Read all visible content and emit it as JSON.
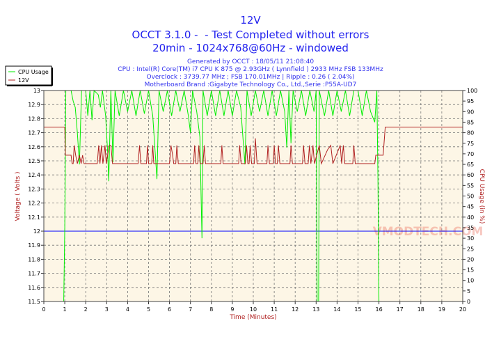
{
  "header": {
    "title": "12V",
    "line2": "OCCT 3.1.0 -  - Test Completed without errors",
    "line3": "20min - 1024x768@60Hz - windowed",
    "info1": "Generated by OCCT : 18/05/11 21:08:40",
    "info2": "CPU : Intel(R) Core(TM) i7 CPU K 875 @ 2.93GHz ( Lynnfield ) 2933 MHz FSB 133MHz",
    "info3": "Overclock : 3739.77 MHz ; FSB 170.01MHz | Ripple : 0.26 ( 2.04%)",
    "info4": "Motherboard Brand :Gigabyte Technology Co., Ltd.,Serie :P55A-UD7"
  },
  "watermark": "VMODTECH.COM",
  "colors": {
    "title": "#2222ee",
    "cpu": "#00ee00",
    "volt": "#b02020",
    "nominal": "#0000ff",
    "plot_bg": "#fdf6e6",
    "axis_label": "#b02020"
  },
  "chart_data": {
    "type": "line",
    "xlabel": "Time (Minutes)",
    "ylabel": "Voltage ( Volts )",
    "y2label": "CPU Usage (in %)",
    "xlim": [
      0,
      20
    ],
    "ylim": [
      11.5,
      13
    ],
    "y2lim": [
      0,
      100
    ],
    "x_ticks": [
      "0",
      "1",
      "2",
      "3",
      "4",
      "5",
      "6",
      "7",
      "8",
      "9",
      "10",
      "11",
      "12",
      "13",
      "14",
      "15",
      "16",
      "17",
      "18",
      "19",
      "20"
    ],
    "y_ticks": [
      "11.5",
      "11.6",
      "11.7",
      "11.8",
      "11.9",
      "12",
      "12.1",
      "12.2",
      "12.3",
      "12.4",
      "12.5",
      "12.6",
      "12.7",
      "12.8",
      "12.9",
      "13"
    ],
    "y2_ticks": [
      "0",
      "5",
      "10",
      "15",
      "20",
      "25",
      "30",
      "35",
      "40",
      "45",
      "50",
      "55",
      "60",
      "65",
      "70",
      "75",
      "80",
      "85",
      "90",
      "95",
      "100"
    ],
    "grid": true,
    "legend_position": "top-left",
    "nominal_voltage": 12,
    "series": [
      {
        "name": "CPU Usage",
        "axis": "right",
        "points": [
          [
            0,
            0
          ],
          [
            0.95,
            0
          ],
          [
            1.0,
            35
          ],
          [
            1.05,
            100
          ],
          [
            1.3,
            100
          ],
          [
            1.4,
            95
          ],
          [
            1.5,
            92
          ],
          [
            1.6,
            80
          ],
          [
            1.7,
            65
          ],
          [
            1.8,
            100
          ],
          [
            2.0,
            100
          ],
          [
            2.1,
            88
          ],
          [
            2.2,
            100
          ],
          [
            2.3,
            86
          ],
          [
            2.4,
            100
          ],
          [
            2.6,
            98
          ],
          [
            2.7,
            92
          ],
          [
            2.8,
            100
          ],
          [
            2.95,
            88
          ],
          [
            3.05,
            70
          ],
          [
            3.1,
            57
          ],
          [
            3.2,
            100
          ],
          [
            3.3,
            66
          ],
          [
            3.4,
            100
          ],
          [
            3.6,
            88
          ],
          [
            3.8,
            100
          ],
          [
            4.0,
            90
          ],
          [
            4.2,
            100
          ],
          [
            4.4,
            88
          ],
          [
            4.6,
            100
          ],
          [
            4.8,
            89
          ],
          [
            5.0,
            100
          ],
          [
            5.2,
            88
          ],
          [
            5.4,
            58
          ],
          [
            5.5,
            100
          ],
          [
            5.7,
            90
          ],
          [
            5.9,
            100
          ],
          [
            6.1,
            88
          ],
          [
            6.3,
            100
          ],
          [
            6.5,
            90
          ],
          [
            6.7,
            100
          ],
          [
            6.9,
            88
          ],
          [
            7.0,
            80
          ],
          [
            7.1,
            100
          ],
          [
            7.3,
            90
          ],
          [
            7.45,
            78
          ],
          [
            7.55,
            30
          ],
          [
            7.6,
            100
          ],
          [
            7.8,
            88
          ],
          [
            8.0,
            100
          ],
          [
            8.2,
            88
          ],
          [
            8.4,
            100
          ],
          [
            8.6,
            88
          ],
          [
            8.8,
            100
          ],
          [
            9.0,
            88
          ],
          [
            9.2,
            100
          ],
          [
            9.4,
            92
          ],
          [
            9.6,
            65
          ],
          [
            9.7,
            100
          ],
          [
            9.9,
            88
          ],
          [
            10.1,
            100
          ],
          [
            10.3,
            90
          ],
          [
            10.5,
            100
          ],
          [
            10.7,
            88
          ],
          [
            10.9,
            100
          ],
          [
            11.1,
            88
          ],
          [
            11.3,
            100
          ],
          [
            11.5,
            90
          ],
          [
            11.6,
            73
          ],
          [
            11.7,
            100
          ],
          [
            11.8,
            75
          ],
          [
            11.9,
            100
          ],
          [
            12.1,
            90
          ],
          [
            12.3,
            100
          ],
          [
            12.5,
            88
          ],
          [
            12.7,
            100
          ],
          [
            12.9,
            90
          ],
          [
            13.0,
            100
          ],
          [
            13.05,
            0
          ],
          [
            13.12,
            0
          ],
          [
            13.15,
            100
          ],
          [
            13.4,
            88
          ],
          [
            13.6,
            100
          ],
          [
            13.8,
            88
          ],
          [
            14.0,
            100
          ],
          [
            14.2,
            90
          ],
          [
            14.4,
            100
          ],
          [
            14.6,
            88
          ],
          [
            14.8,
            100
          ],
          [
            15.0,
            100
          ],
          [
            15.2,
            88
          ],
          [
            15.4,
            100
          ],
          [
            15.6,
            90
          ],
          [
            15.8,
            85
          ],
          [
            15.9,
            100
          ],
          [
            15.95,
            60
          ],
          [
            16.0,
            0
          ],
          [
            20,
            0
          ]
        ]
      },
      {
        "name": "12V",
        "axis": "left",
        "points": [
          [
            0,
            12.74
          ],
          [
            1.0,
            12.74
          ],
          [
            1.03,
            12.54
          ],
          [
            1.3,
            12.54
          ],
          [
            1.35,
            12.48
          ],
          [
            1.4,
            12.48
          ],
          [
            1.45,
            12.61
          ],
          [
            1.52,
            12.54
          ],
          [
            1.6,
            12.48
          ],
          [
            1.7,
            12.54
          ],
          [
            1.78,
            12.48
          ],
          [
            1.85,
            12.54
          ],
          [
            1.92,
            12.48
          ],
          [
            2.55,
            12.48
          ],
          [
            2.62,
            12.61
          ],
          [
            2.68,
            12.48
          ],
          [
            2.75,
            12.61
          ],
          [
            2.82,
            12.48
          ],
          [
            2.92,
            12.61
          ],
          [
            2.98,
            12.48
          ],
          [
            3.12,
            12.61
          ],
          [
            3.2,
            12.61
          ],
          [
            3.28,
            12.48
          ],
          [
            4.5,
            12.48
          ],
          [
            4.57,
            12.61
          ],
          [
            4.63,
            12.48
          ],
          [
            4.9,
            12.48
          ],
          [
            4.95,
            12.61
          ],
          [
            5.0,
            12.48
          ],
          [
            5.15,
            12.48
          ],
          [
            5.2,
            12.61
          ],
          [
            5.25,
            12.48
          ],
          [
            6.0,
            12.48
          ],
          [
            6.07,
            12.61
          ],
          [
            6.15,
            12.54
          ],
          [
            6.2,
            12.48
          ],
          [
            6.3,
            12.48
          ],
          [
            6.35,
            12.61
          ],
          [
            6.42,
            12.48
          ],
          [
            7.15,
            12.48
          ],
          [
            7.2,
            12.61
          ],
          [
            7.26,
            12.48
          ],
          [
            7.35,
            12.48
          ],
          [
            7.4,
            12.61
          ],
          [
            7.46,
            12.48
          ],
          [
            7.6,
            12.48
          ],
          [
            7.66,
            12.61
          ],
          [
            7.72,
            12.48
          ],
          [
            8.45,
            12.48
          ],
          [
            8.5,
            12.61
          ],
          [
            8.56,
            12.48
          ],
          [
            9.3,
            12.48
          ],
          [
            9.35,
            12.61
          ],
          [
            9.42,
            12.48
          ],
          [
            9.62,
            12.48
          ],
          [
            9.68,
            12.61
          ],
          [
            9.74,
            12.48
          ],
          [
            9.8,
            12.48
          ],
          [
            9.85,
            12.61
          ],
          [
            9.92,
            12.48
          ],
          [
            10.05,
            12.48
          ],
          [
            10.1,
            12.66
          ],
          [
            10.18,
            12.48
          ],
          [
            10.65,
            12.48
          ],
          [
            10.7,
            12.61
          ],
          [
            10.77,
            12.48
          ],
          [
            10.95,
            12.48
          ],
          [
            11.0,
            12.61
          ],
          [
            11.06,
            12.48
          ],
          [
            11.15,
            12.48
          ],
          [
            11.2,
            12.61
          ],
          [
            11.27,
            12.48
          ],
          [
            11.75,
            12.48
          ],
          [
            11.8,
            12.61
          ],
          [
            11.87,
            12.48
          ],
          [
            12.35,
            12.48
          ],
          [
            12.4,
            12.61
          ],
          [
            12.47,
            12.48
          ],
          [
            12.62,
            12.48
          ],
          [
            12.68,
            12.61
          ],
          [
            12.75,
            12.48
          ],
          [
            12.85,
            12.61
          ],
          [
            12.92,
            12.48
          ],
          [
            13.15,
            12.61
          ],
          [
            13.25,
            12.48
          ],
          [
            13.55,
            12.58
          ],
          [
            13.7,
            12.61
          ],
          [
            13.8,
            12.48
          ],
          [
            14.15,
            12.61
          ],
          [
            14.22,
            12.48
          ],
          [
            14.3,
            12.61
          ],
          [
            14.37,
            12.48
          ],
          [
            14.75,
            12.48
          ],
          [
            14.8,
            12.61
          ],
          [
            14.87,
            12.48
          ],
          [
            15.8,
            12.48
          ],
          [
            15.85,
            12.54
          ],
          [
            16.2,
            12.54
          ],
          [
            16.3,
            12.74
          ],
          [
            20,
            12.74
          ]
        ]
      }
    ]
  }
}
